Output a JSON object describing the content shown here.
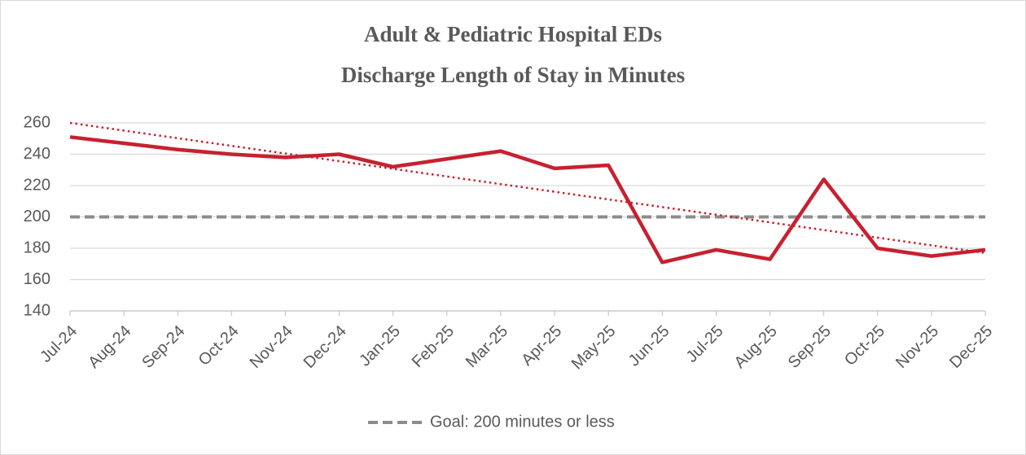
{
  "chart_data": {
    "type": "line",
    "title": [
      "Adult & Pediatric Hospital EDs",
      "Discharge Length of Stay in Minutes"
    ],
    "categories": [
      "Jul-24",
      "Aug-24",
      "Sep-24",
      "Oct-24",
      "Nov-24",
      "Dec-24",
      "Jan-25",
      "Feb-25",
      "Mar-25",
      "Apr-25",
      "May-25",
      "Jun-25",
      "Jul-25",
      "Aug-25",
      "Sep-25",
      "Oct-25",
      "Nov-25",
      "Dec-25"
    ],
    "series": [
      {
        "color": "#c8202f",
        "values": [
          251,
          247,
          243,
          240,
          238,
          240,
          232,
          237,
          242,
          231,
          233,
          171,
          179,
          173,
          224,
          180,
          175,
          179
        ]
      }
    ],
    "trendline": {
      "color": "#c8202f",
      "values": [
        260,
        177
      ]
    },
    "reference_lines": [
      {
        "name": "Goal: 200 minutes or less",
        "value": 200,
        "color": "#8c8c8c"
      }
    ],
    "ylim": [
      140,
      260
    ],
    "yticks": [
      140,
      160,
      180,
      200,
      220,
      240,
      260
    ],
    "grid": true
  }
}
